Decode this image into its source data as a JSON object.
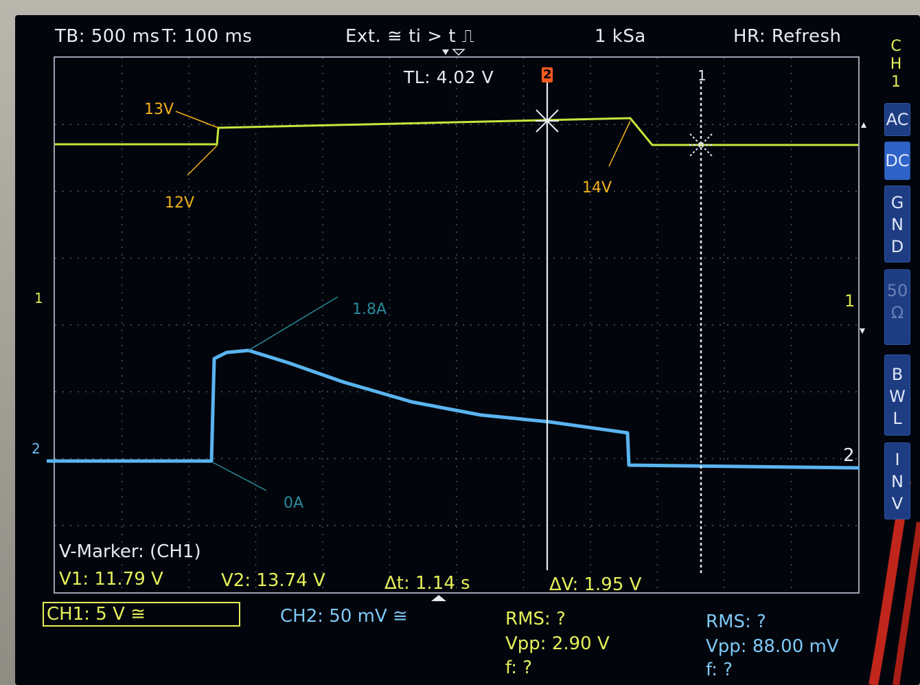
{
  "header": {
    "timebase": "TB: 500 ms",
    "trigger_time": "T: 100 ms",
    "trigger_mode": "Ext. ≅ ti > t ⎍",
    "sample_rate": "1 kSa",
    "acq_mode": "HR: Refresh"
  },
  "trigger_level": "TL:  4.02 V",
  "cursor_labels": {
    "cursor2": "2",
    "cursor1": "1"
  },
  "side_panel": {
    "channel": [
      "C",
      "H",
      "1"
    ],
    "buttons": [
      {
        "label": "AC",
        "active": false
      },
      {
        "label": "DC",
        "active": true
      },
      {
        "label": "G\nN\nD",
        "active": false
      },
      {
        "label": "50\nΩ",
        "active": false
      },
      {
        "label": "B\nW\nL",
        "active": false
      },
      {
        "label": "I\nN\nV",
        "active": false
      }
    ]
  },
  "channel_markers": {
    "ch1_left": "1",
    "ch2_left": "2",
    "ch1_right": "1",
    "ch2_right": "2"
  },
  "annotations": {
    "v13": "13V",
    "v12": "12V",
    "v14": "14V",
    "i18": "1.8A",
    "i0": "0A"
  },
  "marker": {
    "title": "V-Marker: (CH1)",
    "v1": "V1: 11.79 V",
    "v2": "V2: 13.74 V",
    "dt": "Δt: 1.14 s",
    "dv": "ΔV: 1.95 V"
  },
  "channels": {
    "ch1": "CH1: 5 V ≅",
    "ch2": "CH2: 50 mV ≅"
  },
  "measurements": {
    "ch1": {
      "rms": "RMS: ?",
      "vpp": "Vpp: 2.90 V",
      "f": "f: ?"
    },
    "ch2": {
      "rms": "RMS: ?",
      "vpp": "Vpp: 88.00 mV",
      "f": "f: ?"
    }
  },
  "colors": {
    "ch1": "#c8e63c",
    "ch2": "#5ab4f0",
    "annotation_v": "#f5b21d",
    "annotation_i": "#2a8a9a"
  }
}
